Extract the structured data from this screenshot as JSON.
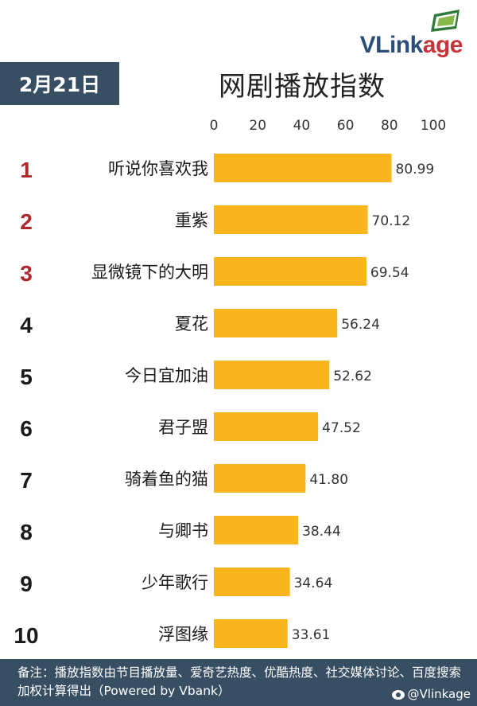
{
  "brand": {
    "name_main": "VLink",
    "name_accent": "age"
  },
  "header": {
    "date": "2月21日",
    "title": "网剧播放指数"
  },
  "colors": {
    "bar": "#f9b51d",
    "top_rank": "#b0262d",
    "rank": "#1a1a1a",
    "panel": "#384e63"
  },
  "chart_data": {
    "type": "bar",
    "orientation": "horizontal",
    "title": "网剧播放指数",
    "categories": [
      "听说你喜欢我",
      "重紫",
      "显微镜下的大明",
      "夏花",
      "今日宜加油",
      "君子盟",
      "骑着鱼的猫",
      "与卿书",
      "少年歌行",
      "浮图缘"
    ],
    "ranks": [
      "1",
      "2",
      "3",
      "4",
      "5",
      "6",
      "7",
      "8",
      "9",
      "10"
    ],
    "values": [
      80.99,
      70.12,
      69.54,
      56.24,
      52.62,
      47.52,
      41.8,
      38.44,
      34.64,
      33.61
    ],
    "value_labels": [
      "80.99",
      "70.12",
      "69.54",
      "56.24",
      "52.62",
      "47.52",
      "41.80",
      "38.44",
      "34.64",
      "33.61"
    ],
    "xlim": [
      0,
      100
    ],
    "xticks": [
      "0",
      "20",
      "40",
      "60",
      "80",
      "100"
    ],
    "xaxis_position": "top",
    "grid": false,
    "legend": false
  },
  "footer": {
    "note": "备注：播放指数由节目播放量、爱奇艺热度、优酷热度、社交媒体讨论、百度搜索加权计算得出（Powered by Vbank）",
    "watermark": "@Vlinkage"
  }
}
